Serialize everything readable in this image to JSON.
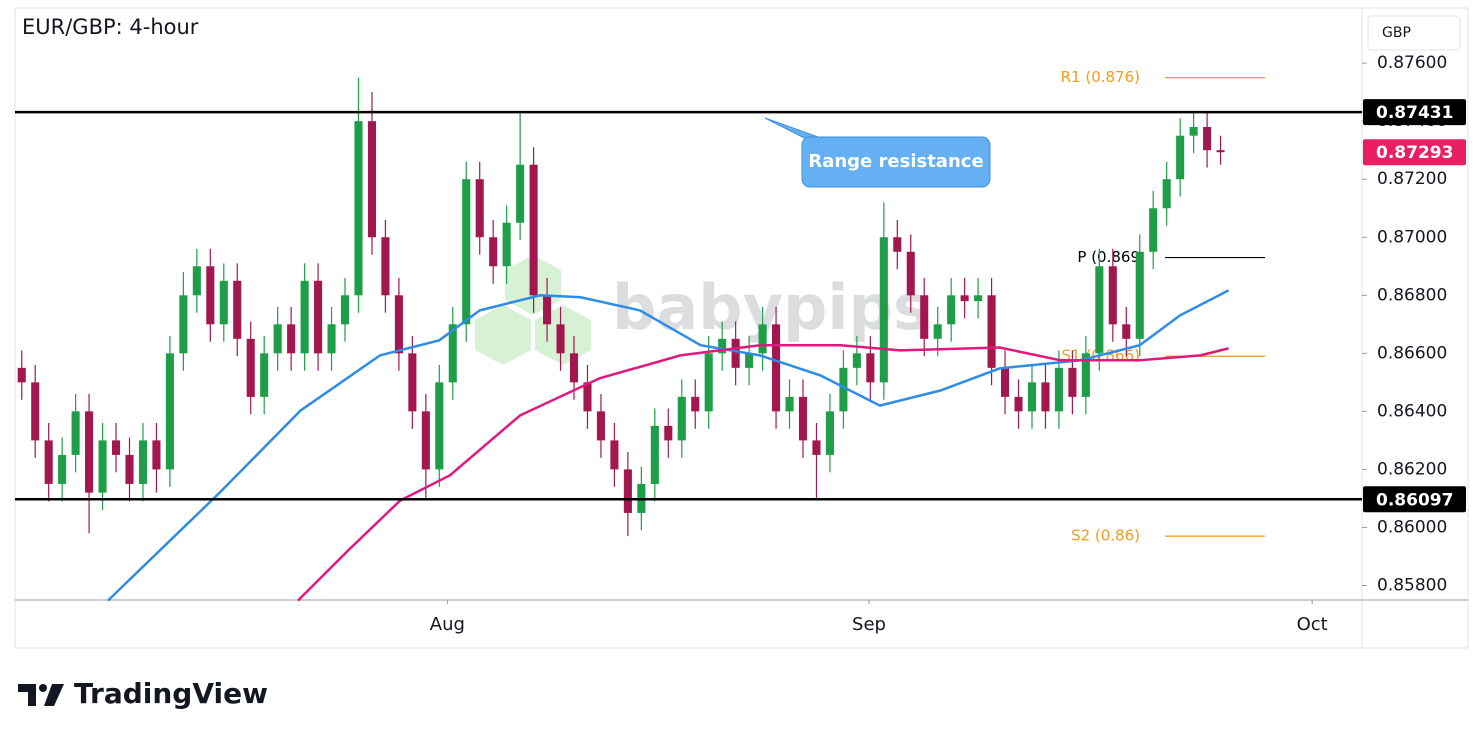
{
  "chart_data": {
    "type": "candlestick",
    "title": "EUR/GBP: 4-hour",
    "currency": "GBP",
    "watermark": "babypips",
    "footer": "TradingView",
    "annotation": "Range resistance",
    "up_color": "#1e9e48",
    "down_color": "#a3174f",
    "xlim": [
      0,
      100
    ],
    "xticks": [
      {
        "value": 32.1,
        "label": "Aug"
      },
      {
        "value": 63.4,
        "label": "Sep"
      },
      {
        "value": 96.3,
        "label": "Oct"
      }
    ],
    "ylim": [
      0.8575,
      0.8779
    ],
    "yticks": [
      {
        "value": 0.876,
        "label": "0.87600"
      },
      {
        "value": 0.874,
        "label": "0.87400"
      },
      {
        "value": 0.872,
        "label": "0.87200"
      },
      {
        "value": 0.87,
        "label": "0.87000"
      },
      {
        "value": 0.868,
        "label": "0.86800"
      },
      {
        "value": 0.866,
        "label": "0.86600"
      },
      {
        "value": 0.864,
        "label": "0.86400"
      },
      {
        "value": 0.862,
        "label": "0.86200"
      },
      {
        "value": 0.86,
        "label": "0.86000"
      },
      {
        "value": 0.858,
        "label": "0.85800"
      }
    ],
    "resistance": 0.87431,
    "support": 0.86097,
    "last_price": 0.87293,
    "last_price_color": "#e91e63",
    "levels": [
      {
        "label": "R1 (0.876)",
        "value": 0.8755,
        "color": "#f29b1d"
      },
      {
        "label": "P (0.869",
        "value": 0.8693,
        "color": "#000000"
      },
      {
        "label": "S1 (0.866)",
        "value": 0.8659,
        "color": "#f29b1d"
      },
      {
        "label": "S2 (0.86)",
        "value": 0.8597,
        "color": "#f29b1d"
      }
    ],
    "lines": [
      {
        "color": "#2f8ce6",
        "x": [
          6.9,
          15.2,
          21.2,
          27.1,
          31.5,
          34.5,
          39,
          42,
          46.4,
          50.9,
          55.3,
          59.8,
          64.2,
          68.7,
          73.1,
          79.1,
          83.5,
          86.5,
          90.1
        ],
        "values": [
          0.85748,
          0.8612,
          0.86403,
          0.86593,
          0.86645,
          0.86748,
          0.868,
          0.86793,
          0.86748,
          0.86628,
          0.86593,
          0.86524,
          0.8642,
          0.86472,
          0.86548,
          0.86576,
          0.86628,
          0.86731,
          0.86817
        ]
      },
      {
        "color": "#e0197d",
        "x": [
          21,
          24.9,
          28.6,
          32.3,
          37.5,
          43.4,
          49.4,
          55.3,
          61.3,
          65.7,
          73.1,
          77.6,
          83.5,
          88,
          90.1
        ],
        "values": [
          0.85748,
          0.85928,
          0.86093,
          0.8618,
          0.86386,
          0.86514,
          0.86593,
          0.86628,
          0.86628,
          0.8661,
          0.8662,
          0.86576,
          0.86576,
          0.86593,
          0.86617
        ]
      }
    ],
    "candles": [
      [
        0.8655,
        0.8661,
        0.8644,
        0.865
      ],
      [
        0.865,
        0.8656,
        0.8624,
        0.863
      ],
      [
        0.863,
        0.8636,
        0.8609,
        0.8615
      ],
      [
        0.8615,
        0.8631,
        0.8609,
        0.8625
      ],
      [
        0.8625,
        0.8646,
        0.8619,
        0.864
      ],
      [
        0.864,
        0.8646,
        0.8598,
        0.8612
      ],
      [
        0.8612,
        0.8636,
        0.8606,
        0.863
      ],
      [
        0.863,
        0.8636,
        0.8619,
        0.8625
      ],
      [
        0.8625,
        0.8631,
        0.8609,
        0.8615
      ],
      [
        0.8615,
        0.8636,
        0.8609,
        0.863
      ],
      [
        0.863,
        0.8636,
        0.8612,
        0.862
      ],
      [
        0.862,
        0.8666,
        0.8614,
        0.866
      ],
      [
        0.866,
        0.8688,
        0.8654,
        0.868
      ],
      [
        0.868,
        0.8696,
        0.8674,
        0.869
      ],
      [
        0.869,
        0.8696,
        0.8664,
        0.867
      ],
      [
        0.867,
        0.8691,
        0.8664,
        0.8685
      ],
      [
        0.8685,
        0.8691,
        0.8659,
        0.8665
      ],
      [
        0.8665,
        0.8671,
        0.8639,
        0.8645
      ],
      [
        0.8645,
        0.8666,
        0.8639,
        0.866
      ],
      [
        0.866,
        0.8676,
        0.8654,
        0.867
      ],
      [
        0.867,
        0.8676,
        0.8654,
        0.866
      ],
      [
        0.866,
        0.8691,
        0.8654,
        0.8685
      ],
      [
        0.8685,
        0.8691,
        0.8654,
        0.866
      ],
      [
        0.866,
        0.8676,
        0.8654,
        0.867
      ],
      [
        0.867,
        0.8686,
        0.8664,
        0.868
      ],
      [
        0.868,
        0.8755,
        0.8674,
        0.874
      ],
      [
        0.874,
        0.875,
        0.8694,
        0.87
      ],
      [
        0.87,
        0.8706,
        0.8674,
        0.868
      ],
      [
        0.868,
        0.8686,
        0.8654,
        0.866
      ],
      [
        0.866,
        0.8666,
        0.8634,
        0.864
      ],
      [
        0.864,
        0.8646,
        0.861,
        0.862
      ],
      [
        0.862,
        0.8656,
        0.8614,
        0.865
      ],
      [
        0.865,
        0.8676,
        0.8644,
        0.867
      ],
      [
        0.867,
        0.8726,
        0.8664,
        0.872
      ],
      [
        0.872,
        0.8726,
        0.8694,
        0.87
      ],
      [
        0.87,
        0.8706,
        0.8684,
        0.869
      ],
      [
        0.869,
        0.8711,
        0.8684,
        0.8705
      ],
      [
        0.8705,
        0.8743,
        0.8699,
        0.8725
      ],
      [
        0.8725,
        0.8731,
        0.8674,
        0.868
      ],
      [
        0.868,
        0.8686,
        0.8664,
        0.867
      ],
      [
        0.867,
        0.8676,
        0.8654,
        0.866
      ],
      [
        0.866,
        0.8666,
        0.8644,
        0.865
      ],
      [
        0.865,
        0.8656,
        0.8634,
        0.864
      ],
      [
        0.864,
        0.8646,
        0.8624,
        0.863
      ],
      [
        0.863,
        0.8636,
        0.8614,
        0.862
      ],
      [
        0.862,
        0.8626,
        0.8597,
        0.8605
      ],
      [
        0.8605,
        0.8621,
        0.8599,
        0.8615
      ],
      [
        0.8615,
        0.8641,
        0.8609,
        0.8635
      ],
      [
        0.8635,
        0.8641,
        0.8624,
        0.863
      ],
      [
        0.863,
        0.8651,
        0.8624,
        0.8645
      ],
      [
        0.8645,
        0.8651,
        0.8634,
        0.864
      ],
      [
        0.864,
        0.8666,
        0.8634,
        0.866
      ],
      [
        0.866,
        0.8671,
        0.8654,
        0.8665
      ],
      [
        0.8665,
        0.8671,
        0.8649,
        0.8655
      ],
      [
        0.8655,
        0.8666,
        0.8649,
        0.866
      ],
      [
        0.866,
        0.8676,
        0.8654,
        0.867
      ],
      [
        0.867,
        0.8676,
        0.8634,
        0.864
      ],
      [
        0.864,
        0.8651,
        0.8634,
        0.8645
      ],
      [
        0.8645,
        0.8651,
        0.8624,
        0.863
      ],
      [
        0.863,
        0.8636,
        0.861,
        0.8625
      ],
      [
        0.8625,
        0.8646,
        0.8619,
        0.864
      ],
      [
        0.864,
        0.8661,
        0.8634,
        0.8655
      ],
      [
        0.8655,
        0.8666,
        0.8649,
        0.866
      ],
      [
        0.866,
        0.8666,
        0.8644,
        0.865
      ],
      [
        0.865,
        0.8712,
        0.8644,
        0.87
      ],
      [
        0.87,
        0.8706,
        0.8689,
        0.8695
      ],
      [
        0.8695,
        0.8701,
        0.8674,
        0.868
      ],
      [
        0.868,
        0.8686,
        0.8659,
        0.8665
      ],
      [
        0.8665,
        0.8676,
        0.8659,
        0.867
      ],
      [
        0.867,
        0.8686,
        0.8664,
        0.868
      ],
      [
        0.868,
        0.8686,
        0.8672,
        0.8678
      ],
      [
        0.8678,
        0.8686,
        0.8672,
        0.868
      ],
      [
        0.868,
        0.8686,
        0.8649,
        0.8655
      ],
      [
        0.8655,
        0.8661,
        0.8639,
        0.8645
      ],
      [
        0.8645,
        0.8651,
        0.8634,
        0.864
      ],
      [
        0.864,
        0.8656,
        0.8634,
        0.865
      ],
      [
        0.865,
        0.8656,
        0.8634,
        0.864
      ],
      [
        0.864,
        0.8661,
        0.8634,
        0.8655
      ],
      [
        0.8655,
        0.8661,
        0.8639,
        0.8645
      ],
      [
        0.8645,
        0.8666,
        0.8639,
        0.866
      ],
      [
        0.866,
        0.8696,
        0.8654,
        0.869
      ],
      [
        0.869,
        0.8696,
        0.8664,
        0.867
      ],
      [
        0.867,
        0.8676,
        0.8659,
        0.8665
      ],
      [
        0.8665,
        0.8701,
        0.8659,
        0.8695
      ],
      [
        0.8695,
        0.8716,
        0.8689,
        0.871
      ],
      [
        0.871,
        0.8726,
        0.8704,
        0.872
      ],
      [
        0.872,
        0.8741,
        0.8714,
        0.8735
      ],
      [
        0.8735,
        0.8743,
        0.8729,
        0.8738
      ],
      [
        0.8738,
        0.8743,
        0.8724,
        0.873
      ],
      [
        0.873,
        0.8735,
        0.8725,
        0.87293
      ]
    ]
  }
}
